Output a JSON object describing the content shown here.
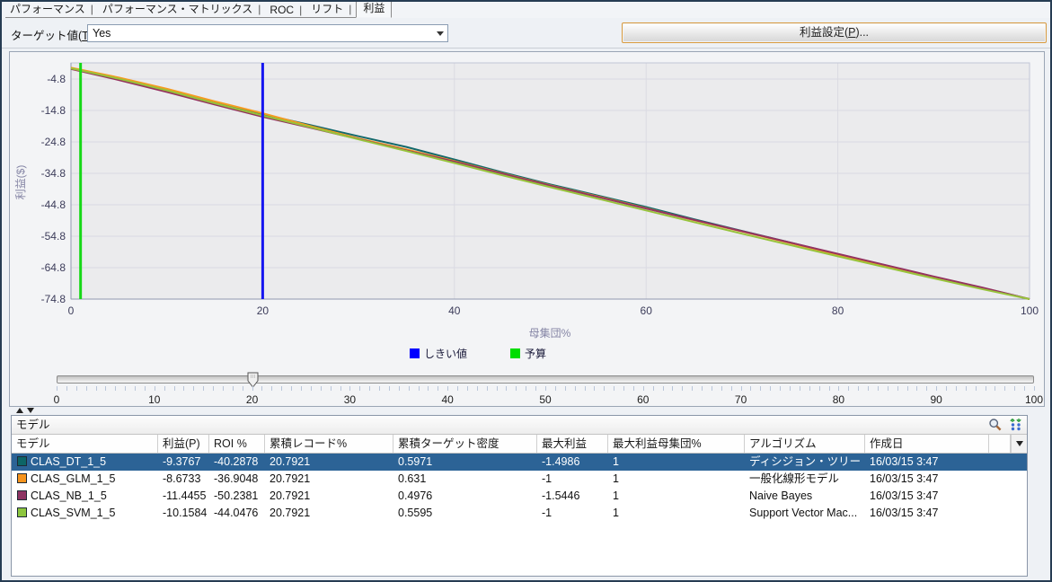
{
  "tabs": {
    "items": [
      {
        "label": "パフォーマンス",
        "selected": false
      },
      {
        "label": "パフォーマンス・マトリックス",
        "selected": false
      },
      {
        "label": "ROC",
        "selected": false
      },
      {
        "label": "リフト",
        "selected": false
      },
      {
        "label": "利益",
        "selected": true
      }
    ]
  },
  "controls": {
    "target_label_pre": "ターゲット値(",
    "target_label_key": "T",
    "target_label_post": "):",
    "target_value": "Yes",
    "button_pre": "利益設定(",
    "button_key": "P",
    "button_post": ")..."
  },
  "chart_data": {
    "type": "line",
    "xlabel": "母集団%",
    "ylabel": "利益($)",
    "xlim": [
      0,
      100
    ],
    "ylim": [
      -75.7,
      0.4
    ],
    "x_ticks": [
      0,
      20,
      40,
      60,
      80,
      100
    ],
    "y_ticks": [
      -4.8,
      -14.8,
      -24.8,
      -34.8,
      -44.8,
      -54.8,
      -64.8,
      -74.8
    ],
    "grid": true,
    "x": [
      0,
      5,
      10,
      15,
      20,
      25,
      30,
      35,
      40,
      45,
      50,
      55,
      60,
      65,
      70,
      75,
      80,
      85,
      90,
      95,
      100
    ],
    "series": [
      {
        "name": "CLAS_DT_1_5",
        "color": "#15696b",
        "values": [
          -1.3,
          -4.5,
          -8.2,
          -12.3,
          -16.0,
          -19.5,
          -23.0,
          -26.4,
          -30.4,
          -34.5,
          -38.3,
          -41.9,
          -45.5,
          -49.4,
          -53.1,
          -56.8,
          -60.5,
          -64.1,
          -67.7,
          -71.2,
          -74.8
        ]
      },
      {
        "name": "CLAS_GLM_1_5",
        "color": "#f59b20",
        "values": [
          -1.2,
          -4.3,
          -7.9,
          -11.9,
          -15.7,
          -19.8,
          -23.7,
          -27.2,
          -30.9,
          -34.8,
          -38.6,
          -42.2,
          -45.9,
          -49.7,
          -53.3,
          -57.0,
          -60.7,
          -64.3,
          -67.8,
          -71.3,
          -74.8
        ]
      },
      {
        "name": "CLAS_NB_1_5",
        "color": "#94335f",
        "values": [
          -1.6,
          -5.1,
          -8.9,
          -12.9,
          -16.8,
          -20.3,
          -23.9,
          -27.5,
          -31.1,
          -34.9,
          -38.7,
          -42.3,
          -46.0,
          -49.6,
          -53.2,
          -56.8,
          -60.4,
          -64.0,
          -67.6,
          -71.1,
          -74.8
        ]
      },
      {
        "name": "CLAS_SVM_1_5",
        "color": "#97c33c",
        "values": [
          -1.4,
          -4.7,
          -8.4,
          -12.5,
          -16.4,
          -20.1,
          -24.0,
          -27.7,
          -31.5,
          -35.4,
          -39.2,
          -42.9,
          -46.6,
          -50.3,
          -54.0,
          -57.6,
          -61.2,
          -64.7,
          -68.2,
          -71.6,
          -74.8
        ]
      }
    ],
    "markers": [
      {
        "name": "threshold",
        "x": 20,
        "color": "#1616f0"
      },
      {
        "name": "budget",
        "x": 1,
        "color": "#16d816"
      }
    ],
    "legend": [
      {
        "label": "しきい値",
        "color": "#0000ff"
      },
      {
        "label": "予算",
        "color": "#00dd00"
      }
    ],
    "legend_position": "bottom"
  },
  "slider": {
    "min": 0,
    "max": 100,
    "value": 20,
    "tick_step": 1,
    "label_step": 10,
    "labels": [
      "0",
      "10",
      "20",
      "30",
      "40",
      "50",
      "60",
      "70",
      "80",
      "90",
      "100"
    ]
  },
  "table": {
    "title": "モデル",
    "toolbar_icons": [
      "search-icon",
      "column-settings-icon"
    ],
    "columns": [
      "モデル",
      "利益(P)",
      "ROI %",
      "累積レコード%",
      "累積ターゲット密度",
      "最大利益",
      "最大利益母集団%",
      "アルゴリズム",
      "作成日"
    ],
    "selected_row_index": 0,
    "selected_row_color": "#2c6396",
    "rows": [
      {
        "name": "CLAS_DT_1_5",
        "color": "#0d6566",
        "cells": [
          "-9.3767",
          "-40.2878",
          "20.7921",
          "0.5971",
          "-1.4986",
          "1",
          "ディシジョン・ツリー",
          "16/03/15 3:47"
        ]
      },
      {
        "name": "CLAS_GLM_1_5",
        "color": "#f7941e",
        "cells": [
          "-8.6733",
          "-36.9048",
          "20.7921",
          "0.631",
          "-1",
          "1",
          "一般化線形モデル",
          "16/03/15 3:47"
        ]
      },
      {
        "name": "CLAS_NB_1_5",
        "color": "#8e3363",
        "cells": [
          "-11.4455",
          "-50.2381",
          "20.7921",
          "0.4976",
          "-1.5446",
          "1",
          "Naive Bayes",
          "16/03/15 3:47"
        ]
      },
      {
        "name": "CLAS_SVM_1_5",
        "color": "#8dc63f",
        "cells": [
          "-10.1584",
          "-44.0476",
          "20.7921",
          "0.5595",
          "-1",
          "1",
          "Support Vector Mac...",
          "16/03/15 3:47"
        ]
      }
    ]
  }
}
